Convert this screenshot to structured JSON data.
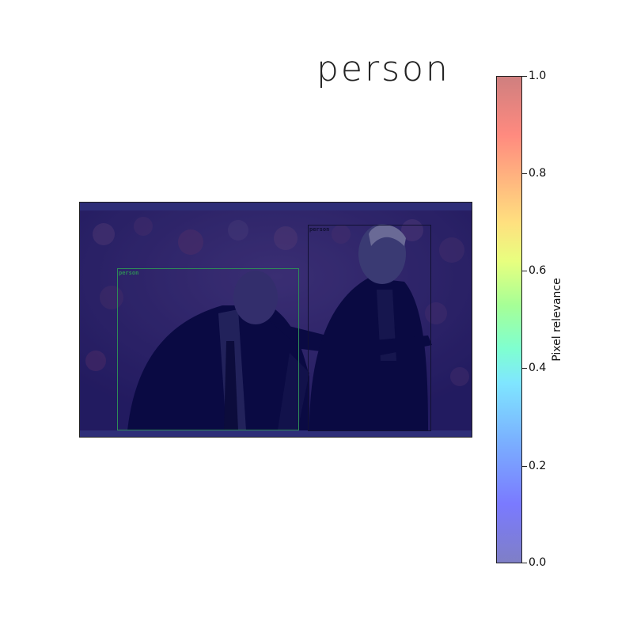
{
  "title": "person",
  "detections": [
    {
      "label": "person",
      "color": "#2e8b57"
    },
    {
      "label": "person",
      "color": "#111133"
    }
  ],
  "colorbar": {
    "label": "Pixel relevance",
    "ticks": [
      "1.0",
      "0.8",
      "0.6",
      "0.4",
      "0.2",
      "0.0"
    ],
    "colormap": "jet"
  }
}
